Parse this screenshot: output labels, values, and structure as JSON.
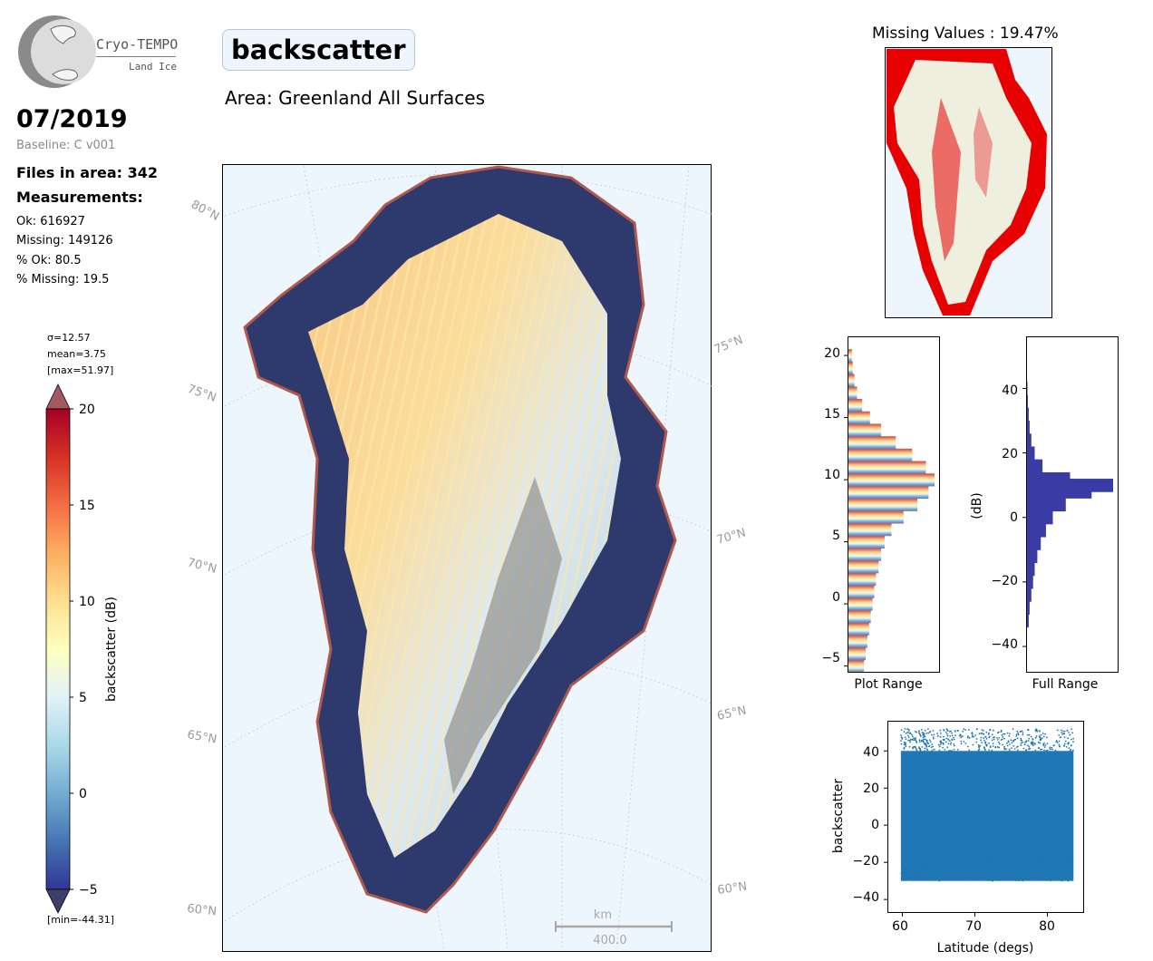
{
  "logo": {
    "name": "Cryo-TEMPO",
    "sub": "Land Ice"
  },
  "header": {
    "title": "backscatter",
    "area": "Area: Greenland All Surfaces"
  },
  "summary": {
    "date": "07/2019",
    "baseline": "Baseline: C v001",
    "files": "Files in area: 342",
    "measurements": "Measurements:",
    "ok": "Ok: 616927",
    "missing": "Missing: 149126",
    "pct_ok": "% Ok: 80.5",
    "pct_missing": "% Missing: 19.5"
  },
  "colorbar": {
    "sigma": "σ=12.57",
    "mean": "mean=3.75",
    "max": "[max=51.97]",
    "min": "[min=-44.31]",
    "label": "backscatter (dB)",
    "ticks": [
      "20",
      "15",
      "10",
      "5",
      "0",
      "−5"
    ],
    "cmap": [
      "#313695",
      "#4575b4",
      "#74add1",
      "#abd9e9",
      "#e0f3f8",
      "#ffffbf",
      "#fee090",
      "#fdae61",
      "#f46d43",
      "#d73027",
      "#a50026"
    ]
  },
  "map": {
    "lat_labels_left": [
      "80°N",
      "75°N",
      "70°N",
      "65°N",
      "60°N"
    ],
    "lat_labels_right": [
      "75°N",
      "70°N",
      "65°N",
      "60°N"
    ],
    "scale_unit": "km",
    "scale_value": "400.0",
    "ocean_color": "#eef6fd"
  },
  "missing_map": {
    "title": "Missing Values : 19.47%",
    "missing_color": "#e60000",
    "land_color": "#efefdf"
  },
  "histograms": {
    "plot_range_label": "Plot Range",
    "full_range_label": "Full Range",
    "plot_ticks": [
      "20",
      "15",
      "10",
      "5",
      "0",
      "−5"
    ],
    "full_ticks": [
      "40",
      "20",
      "0",
      "−20",
      "−40"
    ],
    "full_ylabel": "(dB)",
    "full_color": "#3b3ba6"
  },
  "chart_data": [
    {
      "type": "bar",
      "title": "Plot Range",
      "orientation": "horizontal",
      "ylim": [
        -5.5,
        21.5
      ],
      "bin_centers": [
        -5,
        -4,
        -3,
        -2,
        -1,
        0,
        1,
        2,
        3,
        4,
        5,
        6,
        7,
        8,
        9,
        10,
        11,
        12,
        13,
        14,
        15,
        16,
        17,
        18,
        19,
        20
      ],
      "counts": [
        0.18,
        0.2,
        0.22,
        0.24,
        0.26,
        0.28,
        0.3,
        0.32,
        0.35,
        0.38,
        0.42,
        0.5,
        0.64,
        0.8,
        0.93,
        1.0,
        0.9,
        0.74,
        0.55,
        0.38,
        0.25,
        0.16,
        0.1,
        0.07,
        0.05,
        0.04
      ]
    },
    {
      "type": "bar",
      "title": "Full Range",
      "orientation": "horizontal",
      "ylabel": "(dB)",
      "ylim": [
        -48,
        56
      ],
      "bin_centers": [
        -32,
        -28,
        -24,
        -20,
        -16,
        -12,
        -8,
        -4,
        0,
        4,
        8,
        10,
        12,
        16,
        20,
        24,
        28,
        32,
        36,
        40
      ],
      "counts": [
        0.02,
        0.03,
        0.05,
        0.07,
        0.09,
        0.12,
        0.16,
        0.22,
        0.3,
        0.45,
        0.75,
        1.0,
        0.5,
        0.18,
        0.09,
        0.05,
        0.03,
        0.02,
        0.01,
        0.005
      ]
    },
    {
      "type": "scatter",
      "xlabel": "Latitude (degs)",
      "ylabel": "backscatter",
      "xlim": [
        58,
        85
      ],
      "ylim": [
        -47,
        56
      ],
      "xticks": [
        60,
        70,
        80
      ],
      "yticks": [
        -40,
        -20,
        0,
        20,
        40
      ],
      "x_range": [
        59.8,
        83.6
      ],
      "y_range": [
        -44.31,
        51.97
      ],
      "color": "#1f77b4"
    }
  ]
}
